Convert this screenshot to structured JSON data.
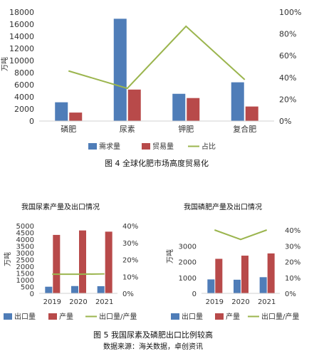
{
  "colors": {
    "blue": "#4f7db8",
    "red": "#b84a4a",
    "green": "#9bb54e",
    "axis": "#d0d0d0",
    "text": "#333333"
  },
  "chart_data": [
    {
      "type": "bar",
      "title": "",
      "caption": "图 4    全球化肥市场高度贸易化",
      "categories": [
        "磷肥",
        "尿素",
        "钾肥",
        "复合肥"
      ],
      "ylabel": "万吨",
      "ylim": [
        0,
        18000
      ],
      "yticks": [
        "0",
        "2000",
        "4000",
        "6000",
        "8000",
        "10000",
        "12000",
        "14000",
        "16000",
        "18000"
      ],
      "y2lim": [
        0,
        100
      ],
      "y2ticks": [
        "0%",
        "20%",
        "40%",
        "60%",
        "80%",
        "100%"
      ],
      "series": [
        {
          "name": "需求量",
          "type": "bar",
          "axis": "left",
          "values": [
            3100,
            16900,
            4500,
            6400
          ]
        },
        {
          "name": "贸易量",
          "type": "bar",
          "axis": "left",
          "values": [
            1400,
            5200,
            3800,
            2400
          ]
        },
        {
          "name": "占比",
          "type": "line",
          "axis": "right",
          "values": [
            46,
            30,
            87,
            38
          ]
        }
      ],
      "legend": "bottom"
    },
    {
      "type": "bar",
      "title": "我国尿素产量及出口情况",
      "categories": [
        "2019",
        "2020",
        "2021"
      ],
      "ylabel": "万吨",
      "ylim": [
        0,
        5000
      ],
      "yticks": [
        "0",
        "500",
        "1000",
        "1500",
        "2000",
        "2500",
        "3000",
        "3500",
        "4000",
        "4500",
        "5000"
      ],
      "y2lim": [
        0,
        40
      ],
      "y2ticks": [
        "0%",
        "10%",
        "20%",
        "30%",
        "40%"
      ],
      "series": [
        {
          "name": "出口量",
          "type": "bar",
          "axis": "left",
          "values": [
            490,
            540,
            530
          ]
        },
        {
          "name": "产量",
          "type": "bar",
          "axis": "left",
          "values": [
            4320,
            4650,
            4560
          ]
        },
        {
          "name": "出口量/产量",
          "type": "line",
          "axis": "right",
          "values": [
            11.3,
            11.3,
            11.5
          ]
        }
      ],
      "legend": "bottom"
    },
    {
      "type": "bar",
      "title": "我国磷肥产量及出口情况",
      "categories": [
        "2019",
        "2020",
        "2021"
      ],
      "ylabel": "万吨",
      "ylim": [
        0,
        4000
      ],
      "yticks": [
        "0",
        "1000",
        "2000",
        "3000"
      ],
      "y2lim": [
        0,
        40
      ],
      "y2ticks": [
        "0%",
        "10%",
        "20%",
        "30%",
        "40%"
      ],
      "series": [
        {
          "name": "出口量",
          "type": "bar",
          "axis": "left",
          "values": [
            880,
            860,
            1020
          ]
        },
        {
          "name": "产量",
          "type": "bar",
          "axis": "left",
          "values": [
            2180,
            2380,
            2520
          ]
        },
        {
          "name": "出口量/产量",
          "type": "line",
          "axis": "right",
          "values": [
            40,
            34,
            40
          ]
        }
      ],
      "legend": "bottom"
    }
  ],
  "figure5_caption": "图 5    我国尿素及磷肥出口比例较高",
  "source_note": "数据来源：海关数据，卓创资讯"
}
